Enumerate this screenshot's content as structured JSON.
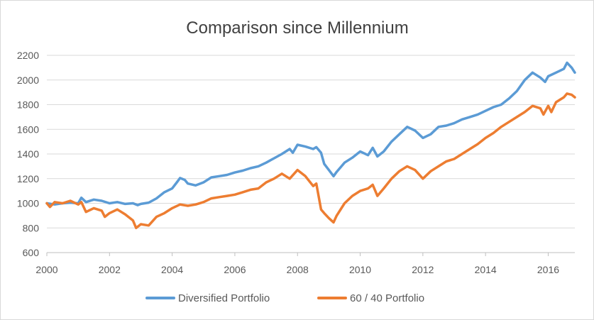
{
  "chart_data": {
    "type": "line",
    "title": "Comparison since Millennium",
    "xlabel": "",
    "ylabel": "",
    "xlim": [
      2000,
      2016.85
    ],
    "ylim": [
      600,
      2200
    ],
    "x_ticks": [
      2000,
      2002,
      2004,
      2006,
      2008,
      2010,
      2012,
      2014,
      2016
    ],
    "y_ticks": [
      600,
      800,
      1000,
      1200,
      1400,
      1600,
      1800,
      2000,
      2200
    ],
    "grid": "horizontal",
    "legend_position": "bottom",
    "colors": {
      "gridline": "#d9d9d9",
      "axis": "#bfbfbf"
    },
    "series": [
      {
        "name": "Diversified Portfolio",
        "color": "#5b9bd5",
        "points": [
          [
            2000.0,
            1000
          ],
          [
            2000.25,
            990
          ],
          [
            2000.5,
            1000
          ],
          [
            2000.75,
            1005
          ],
          [
            2001.0,
            1000
          ],
          [
            2001.1,
            1045
          ],
          [
            2001.25,
            1010
          ],
          [
            2001.5,
            1030
          ],
          [
            2001.75,
            1020
          ],
          [
            2002.0,
            1000
          ],
          [
            2002.25,
            1010
          ],
          [
            2002.5,
            995
          ],
          [
            2002.75,
            1000
          ],
          [
            2002.9,
            985
          ],
          [
            2003.0,
            995
          ],
          [
            2003.25,
            1005
          ],
          [
            2003.5,
            1040
          ],
          [
            2003.75,
            1090
          ],
          [
            2004.0,
            1120
          ],
          [
            2004.15,
            1170
          ],
          [
            2004.25,
            1205
          ],
          [
            2004.4,
            1190
          ],
          [
            2004.5,
            1160
          ],
          [
            2004.75,
            1145
          ],
          [
            2005.0,
            1170
          ],
          [
            2005.25,
            1210
          ],
          [
            2005.5,
            1220
          ],
          [
            2005.75,
            1230
          ],
          [
            2006.0,
            1250
          ],
          [
            2006.25,
            1265
          ],
          [
            2006.5,
            1285
          ],
          [
            2006.75,
            1300
          ],
          [
            2007.0,
            1330
          ],
          [
            2007.25,
            1365
          ],
          [
            2007.5,
            1400
          ],
          [
            2007.75,
            1440
          ],
          [
            2007.85,
            1410
          ],
          [
            2008.0,
            1475
          ],
          [
            2008.25,
            1460
          ],
          [
            2008.5,
            1440
          ],
          [
            2008.6,
            1455
          ],
          [
            2008.75,
            1410
          ],
          [
            2008.85,
            1320
          ],
          [
            2009.0,
            1270
          ],
          [
            2009.15,
            1220
          ],
          [
            2009.25,
            1255
          ],
          [
            2009.5,
            1330
          ],
          [
            2009.75,
            1370
          ],
          [
            2010.0,
            1420
          ],
          [
            2010.25,
            1390
          ],
          [
            2010.4,
            1450
          ],
          [
            2010.55,
            1380
          ],
          [
            2010.75,
            1420
          ],
          [
            2011.0,
            1500
          ],
          [
            2011.25,
            1560
          ],
          [
            2011.5,
            1620
          ],
          [
            2011.75,
            1590
          ],
          [
            2012.0,
            1530
          ],
          [
            2012.25,
            1560
          ],
          [
            2012.5,
            1620
          ],
          [
            2012.75,
            1630
          ],
          [
            2013.0,
            1650
          ],
          [
            2013.25,
            1680
          ],
          [
            2013.5,
            1700
          ],
          [
            2013.75,
            1720
          ],
          [
            2014.0,
            1750
          ],
          [
            2014.25,
            1780
          ],
          [
            2014.5,
            1800
          ],
          [
            2014.75,
            1850
          ],
          [
            2015.0,
            1910
          ],
          [
            2015.25,
            2000
          ],
          [
            2015.5,
            2060
          ],
          [
            2015.75,
            2020
          ],
          [
            2015.9,
            1985
          ],
          [
            2016.0,
            2030
          ],
          [
            2016.25,
            2060
          ],
          [
            2016.5,
            2090
          ],
          [
            2016.6,
            2140
          ],
          [
            2016.75,
            2100
          ],
          [
            2016.85,
            2060
          ]
        ]
      },
      {
        "name": "60 / 40 Portfolio",
        "color": "#ed7d31",
        "points": [
          [
            2000.0,
            1000
          ],
          [
            2000.1,
            970
          ],
          [
            2000.25,
            1010
          ],
          [
            2000.5,
            1000
          ],
          [
            2000.75,
            1020
          ],
          [
            2001.0,
            990
          ],
          [
            2001.1,
            1010
          ],
          [
            2001.25,
            930
          ],
          [
            2001.5,
            960
          ],
          [
            2001.75,
            940
          ],
          [
            2001.85,
            890
          ],
          [
            2002.0,
            920
          ],
          [
            2002.25,
            950
          ],
          [
            2002.5,
            910
          ],
          [
            2002.75,
            860
          ],
          [
            2002.85,
            800
          ],
          [
            2003.0,
            830
          ],
          [
            2003.25,
            820
          ],
          [
            2003.5,
            890
          ],
          [
            2003.75,
            920
          ],
          [
            2004.0,
            960
          ],
          [
            2004.25,
            990
          ],
          [
            2004.5,
            980
          ],
          [
            2004.75,
            990
          ],
          [
            2005.0,
            1010
          ],
          [
            2005.25,
            1040
          ],
          [
            2005.5,
            1050
          ],
          [
            2005.75,
            1060
          ],
          [
            2006.0,
            1070
          ],
          [
            2006.25,
            1090
          ],
          [
            2006.5,
            1110
          ],
          [
            2006.75,
            1120
          ],
          [
            2007.0,
            1170
          ],
          [
            2007.25,
            1200
          ],
          [
            2007.5,
            1240
          ],
          [
            2007.75,
            1200
          ],
          [
            2008.0,
            1270
          ],
          [
            2008.25,
            1220
          ],
          [
            2008.5,
            1140
          ],
          [
            2008.6,
            1160
          ],
          [
            2008.75,
            950
          ],
          [
            2008.85,
            920
          ],
          [
            2009.0,
            880
          ],
          [
            2009.15,
            845
          ],
          [
            2009.25,
            900
          ],
          [
            2009.5,
            1000
          ],
          [
            2009.75,
            1060
          ],
          [
            2010.0,
            1100
          ],
          [
            2010.25,
            1120
          ],
          [
            2010.4,
            1150
          ],
          [
            2010.55,
            1060
          ],
          [
            2010.75,
            1120
          ],
          [
            2011.0,
            1200
          ],
          [
            2011.25,
            1260
          ],
          [
            2011.5,
            1300
          ],
          [
            2011.75,
            1270
          ],
          [
            2012.0,
            1200
          ],
          [
            2012.25,
            1260
          ],
          [
            2012.5,
            1300
          ],
          [
            2012.75,
            1340
          ],
          [
            2013.0,
            1360
          ],
          [
            2013.25,
            1400
          ],
          [
            2013.5,
            1440
          ],
          [
            2013.75,
            1480
          ],
          [
            2014.0,
            1530
          ],
          [
            2014.25,
            1570
          ],
          [
            2014.5,
            1620
          ],
          [
            2014.75,
            1660
          ],
          [
            2015.0,
            1700
          ],
          [
            2015.25,
            1740
          ],
          [
            2015.5,
            1790
          ],
          [
            2015.75,
            1770
          ],
          [
            2015.85,
            1720
          ],
          [
            2016.0,
            1790
          ],
          [
            2016.1,
            1740
          ],
          [
            2016.25,
            1820
          ],
          [
            2016.5,
            1860
          ],
          [
            2016.6,
            1890
          ],
          [
            2016.75,
            1880
          ],
          [
            2016.85,
            1860
          ]
        ]
      }
    ]
  }
}
